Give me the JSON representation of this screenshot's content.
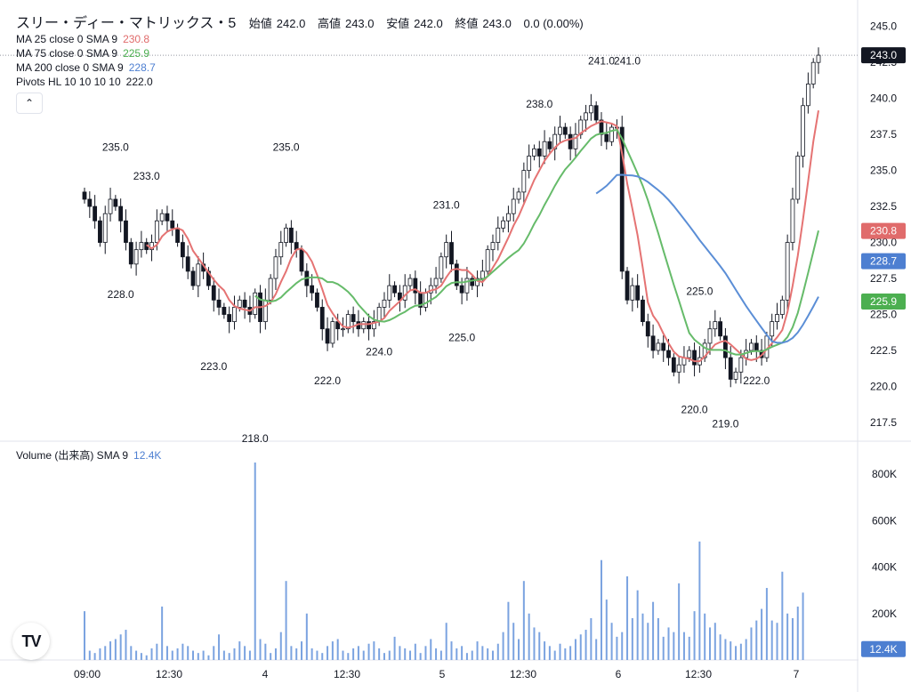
{
  "header": {
    "title": "スリー・ディー・マトリックス・5",
    "open_label": "始値",
    "open": "242.0",
    "high_label": "高値",
    "high": "243.0",
    "low_label": "安値",
    "low": "242.0",
    "close_label": "終値",
    "close": "243.0",
    "change": "0.0 (0.00%)"
  },
  "legend": [
    {
      "name": "MA 25 close 0 SMA 9",
      "value": "230.8",
      "color": "#e06b6b"
    },
    {
      "name": "MA 75 close 0 SMA 9",
      "value": "225.9",
      "color": "#4caf50"
    },
    {
      "name": "MA 200 close 0 SMA 9",
      "value": "228.7",
      "color": "#4d7fd1"
    },
    {
      "name": "Pivots HL 10 10 10 10",
      "value": "222.0",
      "color": "#131722"
    }
  ],
  "volume_legend": {
    "name": "Volume (出来高) SMA 9",
    "value": "12.4K",
    "color": "#4d7fd1"
  },
  "colors": {
    "up": "#131722",
    "down": "#131722",
    "ma25": "#e57373",
    "ma75": "#66bb6a",
    "ma200": "#5b8ed6",
    "volume": "#7ba3e0"
  },
  "icons": {
    "collapse": "chevron-up-icon",
    "logo": "tradingview-logo-icon"
  },
  "chart_data": {
    "type": "candlestick",
    "price_axis": {
      "ticks": [
        "245.0",
        "242.5",
        "240.0",
        "237.5",
        "235.0",
        "232.5",
        "230.0",
        "227.5",
        "225.0",
        "222.5",
        "220.0",
        "217.5"
      ],
      "range": [
        216.2,
        245.6
      ]
    },
    "volume_axis": {
      "ticks": [
        "800K",
        "600K",
        "400K",
        "200K"
      ],
      "range": [
        0,
        850000
      ]
    },
    "x_ticks": [
      "09:00",
      "12:30",
      "4",
      "12:30",
      "5",
      "12:30",
      "6",
      "12:30",
      "7"
    ],
    "price_badges": [
      {
        "label": "243.0",
        "value": 243.0,
        "bg": "#131722",
        "fg": "#ffffff"
      },
      {
        "label": "230.8",
        "value": 230.8,
        "bg": "#e06b6b",
        "fg": "#ffffff"
      },
      {
        "label": "228.7",
        "value": 228.7,
        "bg": "#4d7fd1",
        "fg": "#ffffff"
      },
      {
        "label": "225.9",
        "value": 225.9,
        "bg": "#4caf50",
        "fg": "#ffffff"
      }
    ],
    "volume_badge": {
      "label": "12.4K",
      "value": 12400
    },
    "last_price_line": 243.0,
    "pivots": [
      {
        "label": "235.0",
        "bar": 6,
        "price": 235.0,
        "type": "high"
      },
      {
        "label": "233.0",
        "bar": 12,
        "price": 233.0,
        "type": "high"
      },
      {
        "label": "228.0",
        "bar": 7,
        "price": 228.0,
        "type": "low"
      },
      {
        "label": "223.0",
        "bar": 25,
        "price": 223.0,
        "type": "low"
      },
      {
        "label": "218.0",
        "bar": 33,
        "price": 218.0,
        "type": "low"
      },
      {
        "label": "235.0",
        "bar": 39,
        "price": 235.0,
        "type": "high"
      },
      {
        "label": "222.0",
        "bar": 47,
        "price": 222.0,
        "type": "low"
      },
      {
        "label": "224.0",
        "bar": 57,
        "price": 224.0,
        "type": "low"
      },
      {
        "label": "231.0",
        "bar": 70,
        "price": 231.0,
        "type": "high"
      },
      {
        "label": "225.0",
        "bar": 73,
        "price": 225.0,
        "type": "low"
      },
      {
        "label": "238.0",
        "bar": 88,
        "price": 238.0,
        "type": "high"
      },
      {
        "label": "241.0",
        "bar": 100,
        "price": 241.0,
        "type": "high"
      },
      {
        "label": "241.0",
        "bar": 105,
        "price": 241.0,
        "type": "high"
      },
      {
        "label": "220.0",
        "bar": 118,
        "price": 220.0,
        "type": "low"
      },
      {
        "label": "219.0",
        "bar": 124,
        "price": 219.0,
        "type": "low"
      },
      {
        "label": "225.0",
        "bar": 119,
        "price": 225.0,
        "type": "high"
      },
      {
        "label": "222.0",
        "bar": 130,
        "price": 222.0,
        "type": "low"
      }
    ],
    "closes": [
      233.0,
      232.5,
      231.5,
      230.0,
      232.0,
      233.0,
      232.5,
      231.5,
      230.0,
      228.5,
      229.5,
      230.0,
      229.5,
      230.0,
      231.5,
      232.0,
      231.5,
      231.0,
      230.0,
      229.0,
      228.0,
      227.0,
      228.5,
      228.0,
      227.0,
      226.0,
      225.5,
      225.0,
      224.5,
      225.5,
      226.0,
      225.5,
      225.0,
      226.5,
      224.5,
      226.0,
      227.5,
      229.0,
      230.0,
      231.0,
      230.0,
      229.5,
      228.0,
      227.0,
      226.5,
      225.5,
      224.0,
      223.0,
      224.5,
      224.0,
      224.0,
      225.0,
      224.5,
      224.0,
      224.5,
      224.0,
      224.5,
      225.5,
      226.0,
      227.0,
      226.5,
      226.0,
      227.0,
      227.5,
      226.5,
      225.5,
      226.5,
      227.0,
      227.5,
      229.0,
      230.0,
      228.5,
      227.0,
      226.5,
      227.5,
      227.0,
      227.5,
      228.0,
      229.5,
      230.0,
      231.0,
      231.5,
      232.0,
      233.0,
      233.5,
      235.0,
      236.0,
      236.5,
      236.0,
      237.0,
      236.5,
      237.5,
      238.0,
      237.5,
      236.5,
      237.5,
      238.5,
      239.0,
      239.5,
      238.5,
      237.5,
      237.0,
      238.0,
      238.0,
      228.0,
      226.0,
      227.0,
      226.0,
      224.5,
      223.5,
      222.5,
      223.0,
      222.5,
      222.0,
      221.0,
      221.5,
      222.0,
      222.5,
      221.5,
      222.0,
      223.0,
      224.0,
      224.5,
      223.5,
      222.0,
      220.5,
      221.0,
      222.0,
      222.5,
      223.0,
      222.5,
      222.0,
      223.5,
      224.5,
      225.0,
      226.0,
      230.0,
      233.0,
      236.0,
      239.5,
      241.0,
      242.5,
      243.0
    ],
    "volumes": [
      210000,
      40000,
      30000,
      50000,
      60000,
      80000,
      90000,
      110000,
      130000,
      60000,
      40000,
      30000,
      20000,
      50000,
      70000,
      230000,
      60000,
      40000,
      50000,
      70000,
      60000,
      40000,
      30000,
      40000,
      20000,
      60000,
      110000,
      40000,
      30000,
      50000,
      80000,
      60000,
      40000,
      850000,
      90000,
      70000,
      30000,
      50000,
      120000,
      340000,
      60000,
      50000,
      80000,
      200000,
      50000,
      40000,
      30000,
      60000,
      80000,
      90000,
      40000,
      30000,
      50000,
      60000,
      40000,
      70000,
      80000,
      50000,
      30000,
      40000,
      100000,
      60000,
      50000,
      40000,
      70000,
      30000,
      60000,
      90000,
      50000,
      40000,
      160000,
      80000,
      50000,
      60000,
      30000,
      40000,
      80000,
      60000,
      50000,
      40000,
      70000,
      120000,
      250000,
      160000,
      90000,
      340000,
      200000,
      140000,
      120000,
      80000,
      60000,
      40000,
      70000,
      50000,
      60000,
      90000,
      110000,
      130000,
      180000,
      90000,
      430000,
      260000,
      160000,
      100000,
      120000,
      360000,
      180000,
      300000,
      200000,
      160000,
      250000,
      180000,
      100000,
      140000,
      120000,
      330000,
      120000,
      100000,
      210000,
      510000,
      200000,
      140000,
      160000,
      110000,
      90000,
      80000,
      60000,
      70000,
      90000,
      140000,
      170000,
      220000,
      310000,
      170000,
      160000,
      380000,
      200000,
      180000,
      230000,
      290000
    ]
  }
}
